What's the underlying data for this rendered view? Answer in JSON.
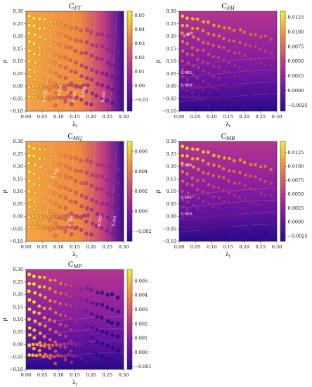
{
  "chart_data": [
    {
      "type": "scatter",
      "title": "C",
      "title_sub": "FT",
      "xlabel": "λ",
      "xlabel_sub": "t",
      "ylabel": "μ",
      "xlim": [
        0,
        0.3
      ],
      "ylim": [
        -0.1,
        0.3
      ],
      "x_ticks": [
        "0.00",
        "0.05",
        "0.10",
        "0.15",
        "0.20",
        "0.25",
        "0.30"
      ],
      "y_ticks": [
        "−0.10",
        "−0.05",
        "0.00",
        "0.05",
        "0.10",
        "0.15",
        "0.20",
        "0.25",
        "0.30"
      ],
      "colorbar": {
        "min": -0.018,
        "max": 0.053,
        "ticks": [
          "0.05",
          "0.04",
          "0.03",
          "0.02",
          "0.01",
          "0.00",
          "−0.01"
        ],
        "tick_values": [
          0.05,
          0.04,
          0.03,
          0.02,
          0.01,
          0.0,
          -0.01
        ]
      },
      "background": "orange",
      "contour_labels": [
        {
          "text": "0.024",
          "x": 0.058,
          "y": -0.065,
          "rot": -80
        },
        {
          "text": "0.012",
          "x": 0.148,
          "y": -0.065,
          "rot": -80
        },
        {
          "text": "0.000",
          "x": 0.238,
          "y": -0.065,
          "rot": -80
        },
        {
          "text": "0.006",
          "x": 0.105,
          "y": -0.04,
          "rot": -80
        },
        {
          "text": "0.018",
          "x": 0.178,
          "y": -0.045,
          "rot": -80
        }
      ]
    },
    {
      "type": "scatter",
      "title": "C",
      "title_sub": "FH",
      "xlabel": "λ",
      "xlabel_sub": "t",
      "ylabel": "μ",
      "xlim": [
        0,
        0.3
      ],
      "ylim": [
        -0.1,
        0.3
      ],
      "x_ticks": [
        "0.00",
        "0.05",
        "0.10",
        "0.15",
        "0.20",
        "0.25",
        "0.30"
      ],
      "y_ticks": [
        "−0.10",
        "−0.05",
        "0.00",
        "0.05",
        "0.10",
        "0.15",
        "0.20",
        "0.25",
        "0.30"
      ],
      "colorbar": {
        "min": -0.0035,
        "max": 0.0135,
        "ticks": [
          "0.0125",
          "0.0100",
          "0.0075",
          "0.0050",
          "0.0025",
          "0.0000",
          "−0.0025"
        ],
        "tick_values": [
          0.0125,
          0.01,
          0.0075,
          0.005,
          0.0025,
          0.0,
          -0.0025
        ]
      },
      "background": "purple",
      "contour_labels": [
        {
          "text": "0.006",
          "x": 0.012,
          "y": 0.195,
          "rot": -20
        },
        {
          "text": "0.002",
          "x": 0.005,
          "y": 0.05,
          "rot": 0
        },
        {
          "text": "0.000",
          "x": 0.005,
          "y": 0.0,
          "rot": 0
        }
      ]
    },
    {
      "type": "scatter",
      "title": "C",
      "title_sub": "MQ",
      "xlabel": "λ",
      "xlabel_sub": "t",
      "ylabel": "μ",
      "xlim": [
        0,
        0.3
      ],
      "ylim": [
        -0.1,
        0.3
      ],
      "x_ticks": [
        "0.00",
        "0.05",
        "0.10",
        "0.15",
        "0.20",
        "0.25",
        "0.30"
      ],
      "y_ticks": [
        "−0.10",
        "−0.05",
        "0.00",
        "0.05",
        "0.10",
        "0.15",
        "0.20",
        "0.25",
        "0.30"
      ],
      "colorbar": {
        "min": -0.003,
        "max": 0.007,
        "ticks": [
          "0.006",
          "0.004",
          "0.002",
          "0.000",
          "−0.002"
        ],
        "tick_values": [
          0.006,
          0.004,
          0.002,
          0.0,
          -0.002
        ]
      },
      "background": "orange",
      "contour_labels": [
        {
          "text": "0.005",
          "x": 0.085,
          "y": 0.15,
          "rot": -60
        },
        {
          "text": "0.004",
          "x": 0.138,
          "y": -0.04,
          "rot": -80
        },
        {
          "text": "0.002",
          "x": 0.228,
          "y": -0.04,
          "rot": -80
        },
        {
          "text": "0.001",
          "x": 0.272,
          "y": -0.04,
          "rot": -80
        }
      ]
    },
    {
      "type": "scatter",
      "title": "C",
      "title_sub": "MR",
      "xlabel": "λ",
      "xlabel_sub": "t",
      "ylabel": "μ",
      "xlim": [
        0,
        0.3
      ],
      "ylim": [
        -0.1,
        0.3
      ],
      "x_ticks": [
        "0.00",
        "0.05",
        "0.10",
        "0.15",
        "0.20",
        "0.25",
        "0.30"
      ],
      "y_ticks": [
        "−0.10",
        "−0.05",
        "0.00",
        "0.05",
        "0.10",
        "0.15",
        "0.20",
        "0.25",
        "0.30"
      ],
      "colorbar": {
        "min": -0.0035,
        "max": 0.0145,
        "ticks": [
          "0.0125",
          "0.0100",
          "0.0075",
          "0.0050",
          "0.0025",
          "0.0000",
          "−0.0025"
        ],
        "tick_values": [
          0.0125,
          0.01,
          0.0075,
          0.005,
          0.0025,
          0.0,
          -0.0025
        ]
      },
      "background": "purple",
      "contour_labels": [
        {
          "text": "0.010",
          "x": 0.005,
          "y": 0.2,
          "rot": 0
        },
        {
          "text": "0.004",
          "x": 0.005,
          "y": 0.07,
          "rot": 0
        },
        {
          "text": "0.000",
          "x": 0.005,
          "y": 0.005,
          "rot": 0
        }
      ]
    },
    {
      "type": "scatter",
      "title": "C",
      "title_sub": "MP",
      "xlabel": "λ",
      "xlabel_sub": "t",
      "ylabel": "μ",
      "xlim": [
        0,
        0.3
      ],
      "ylim": [
        -0.1,
        0.3
      ],
      "x_ticks": [
        "0.00",
        "0.05",
        "0.10",
        "0.15",
        "0.20",
        "0.25",
        "0.30"
      ],
      "y_ticks": [
        "−0.10",
        "−0.05",
        "0.00",
        "0.05",
        "0.10",
        "0.15",
        "0.20",
        "0.25",
        "0.30"
      ],
      "colorbar": {
        "min": -0.0012,
        "max": 0.0058,
        "ticks": [
          "0.005",
          "0.004",
          "0.003",
          "0.002",
          "0.001",
          "0.000",
          "−0.001"
        ],
        "tick_values": [
          0.005,
          0.004,
          0.003,
          0.002,
          0.001,
          0.0,
          -0.001
        ]
      },
      "background": "purple",
      "contour_labels": []
    }
  ]
}
